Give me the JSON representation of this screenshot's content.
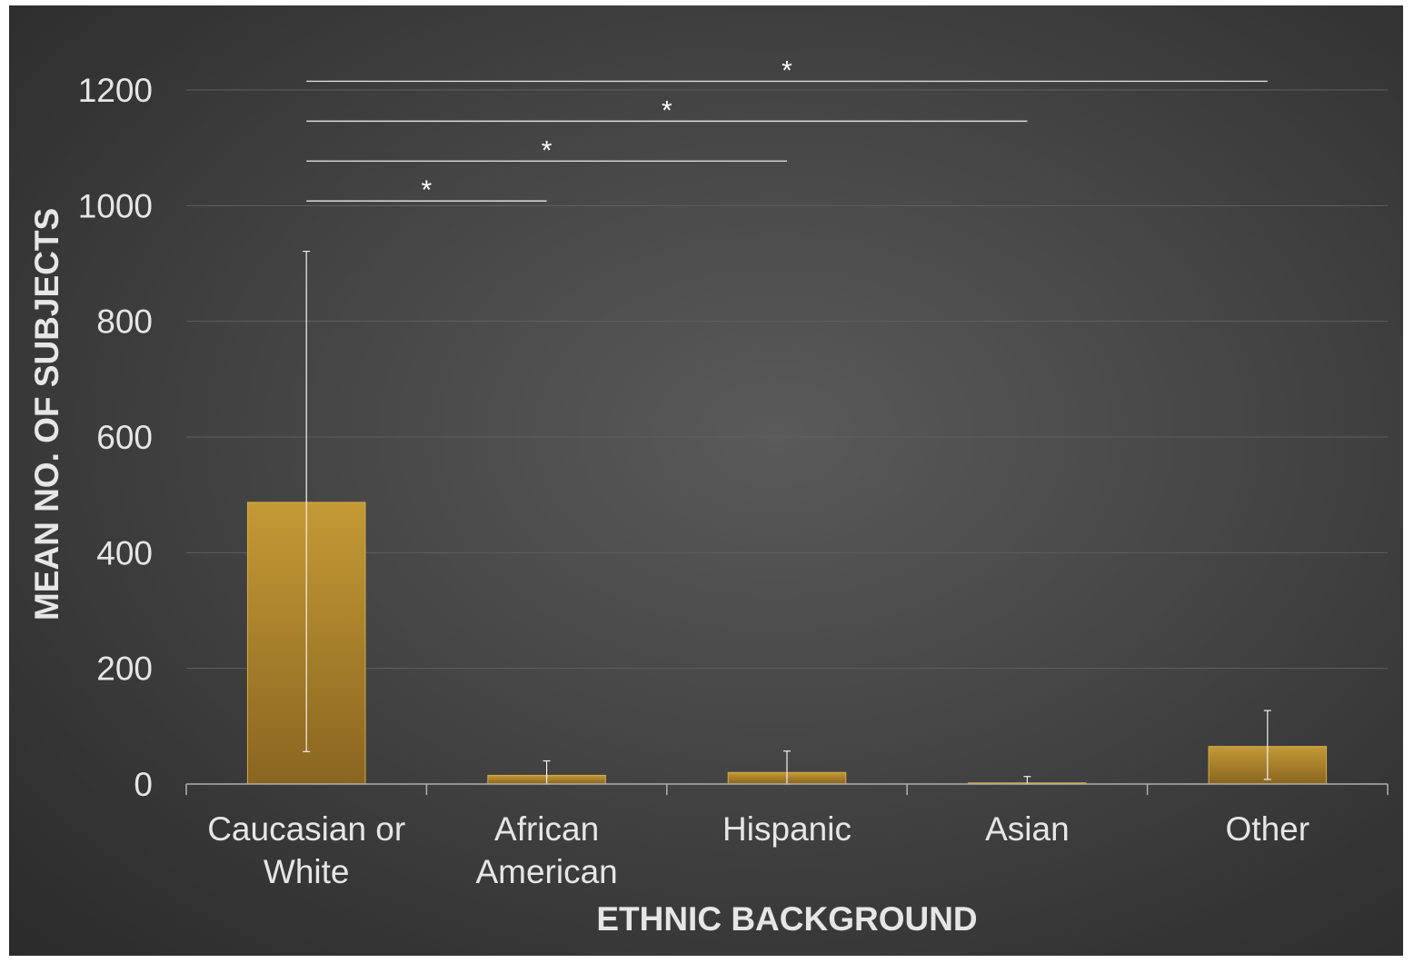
{
  "chart_data": {
    "type": "bar",
    "title": "",
    "xlabel": "ETHNIC BACKGROUND",
    "ylabel": "MEAN NO. OF SUBJECTS",
    "ylim": [
      0,
      1200
    ],
    "yticks": [
      0,
      200,
      400,
      600,
      800,
      1000,
      1200
    ],
    "grid": true,
    "legend": "none",
    "categories": [
      [
        "Caucasian or",
        "White"
      ],
      [
        "African",
        "American"
      ],
      [
        "Hispanic"
      ],
      [
        "Asian"
      ],
      [
        "Other"
      ]
    ],
    "values": [
      487,
      15,
      20,
      2,
      65
    ],
    "error_low": [
      56,
      0,
      0,
      0,
      8
    ],
    "error_high": [
      921,
      40,
      57,
      13,
      127
    ],
    "significance": [
      {
        "from": 0,
        "to": 1,
        "level": 1008,
        "label": "*"
      },
      {
        "from": 0,
        "to": 2,
        "level": 1077,
        "label": "*"
      },
      {
        "from": 0,
        "to": 3,
        "level": 1146,
        "label": "*"
      },
      {
        "from": 0,
        "to": 4,
        "level": 1215,
        "label": "*"
      }
    ],
    "colors": {
      "bar": "#b58a2a",
      "gridline": "#5f5f5f",
      "axis": "#b0b0b0",
      "text": "#e6e6e6"
    }
  }
}
